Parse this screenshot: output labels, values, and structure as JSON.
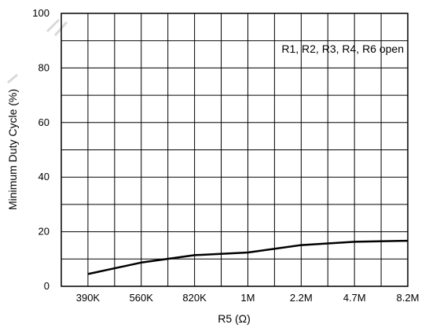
{
  "chart_data": {
    "type": "line",
    "title": "",
    "xlabel": "R5 (Ω)",
    "ylabel": "Minimum Duty Cycle (%)",
    "categories": [
      "390K",
      "560K",
      "820K",
      "1M",
      "2.2M",
      "4.7M",
      "8.2M"
    ],
    "ylim": [
      0,
      100
    ],
    "yticks": [
      "0",
      "20",
      "40",
      "60",
      "80",
      "100"
    ],
    "grid": true,
    "annotation": "R1, R2, R3, R4, R6 open",
    "series": [
      {
        "values": [
          4.5,
          8.7,
          11.4,
          12.4,
          15.1,
          16.3,
          16.7
        ]
      }
    ]
  }
}
